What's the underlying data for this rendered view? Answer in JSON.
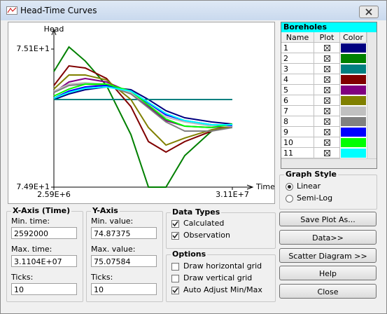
{
  "window": {
    "title": "Head-Time Curves"
  },
  "chart_data": {
    "type": "line",
    "y_label": "Head",
    "x_label": "Time",
    "xlim": [
      2592000,
      31104000
    ],
    "ylim": [
      74.9,
      75.1
    ],
    "xticks": [
      {
        "value": 2592000,
        "label": "2.59E+6"
      },
      {
        "value": 31104000,
        "label": "3.11E+7"
      }
    ],
    "yticks": [
      {
        "value": 75.1,
        "label": "7.51E+1"
      },
      {
        "value": 74.9,
        "label": "7.49E+1"
      }
    ],
    "x": [
      2592000,
      5000000,
      7600000,
      11000000,
      14900000,
      17700000,
      20500000,
      23500000,
      27800000,
      31104000
    ],
    "series": [
      {
        "name": "1",
        "color": "#000080",
        "values": [
          75.0269,
          75.035,
          75.0411,
          75.0452,
          75.0411,
          75.0269,
          75.0107,
          75.0005,
          74.9944,
          74.9914
        ]
      },
      {
        "name": "2",
        "color": "#008000",
        "values": [
          75.0675,
          75.103,
          75.0827,
          75.0472,
          74.9761,
          74.9,
          74.9,
          74.9457,
          74.9812,
          74.9914
        ]
      },
      {
        "name": "3",
        "color": "#008080",
        "values": [
          75.0269,
          75.0269,
          75.0269,
          75.0269,
          75.0269,
          75.0269,
          75.0269,
          75.0269,
          75.0269,
          75.0269
        ]
      },
      {
        "name": "4",
        "color": "#800000",
        "values": [
          75.0472,
          75.0756,
          75.0726,
          75.0574,
          75.0167,
          74.966,
          74.9508,
          74.966,
          74.9812,
          74.9883
        ]
      },
      {
        "name": "5",
        "color": "#800080",
        "values": [
          75.0371,
          75.0523,
          75.0574,
          75.0523,
          75.0371,
          75.0167,
          74.9964,
          74.9883,
          74.9863,
          74.9883
        ]
      },
      {
        "name": "6",
        "color": "#808000",
        "values": [
          75.0421,
          75.0624,
          75.0624,
          75.0553,
          75.0269,
          74.9863,
          74.9609,
          74.9711,
          74.9832,
          74.9883
        ]
      },
      {
        "name": "7",
        "color": "#c0c0c0",
        "values": [
          75.0391,
          75.0492,
          75.0513,
          75.0492,
          75.0371,
          75.0188,
          75.0015,
          74.9944,
          74.9883,
          74.9883
        ]
      },
      {
        "name": "8",
        "color": "#808080",
        "values": [
          75.0371,
          75.0472,
          75.0492,
          75.0472,
          75.035,
          75.0147,
          74.9944,
          74.9812,
          74.9812,
          74.9863
        ]
      },
      {
        "name": "9",
        "color": "#0000ff",
        "values": [
          75.0289,
          75.0391,
          75.0452,
          75.0472,
          75.0391,
          75.0218,
          75.0046,
          74.9964,
          74.9904,
          74.9893
        ]
      },
      {
        "name": "10",
        "color": "#00ff00",
        "values": [
          75.032,
          75.0421,
          75.0492,
          75.0492,
          75.0391,
          75.0188,
          74.9985,
          74.9883,
          74.9863,
          74.9914
        ]
      },
      {
        "name": "11",
        "color": "#00ffff",
        "values": [
          75.0289,
          75.0371,
          75.0431,
          75.0452,
          75.0391,
          75.0228,
          75.0066,
          74.9964,
          74.9904,
          74.9904
        ]
      }
    ]
  },
  "boreholes": {
    "title": "Boreholes",
    "columns": [
      "Name",
      "Plot",
      "Color"
    ],
    "plot": [
      true,
      true,
      true,
      true,
      true,
      true,
      true,
      true,
      true,
      true,
      true
    ]
  },
  "graph_style": {
    "title": "Graph Style",
    "options": [
      "Linear",
      "Semi-Log"
    ],
    "selected": 0
  },
  "x_axis": {
    "title": "X-Axis (Time)",
    "fields": [
      {
        "label": "Min. time:",
        "value": "2592000"
      },
      {
        "label": "Max. time:",
        "value": "3.1104E+07"
      },
      {
        "label": "Ticks:",
        "value": "10"
      }
    ]
  },
  "y_axis": {
    "title": "Y-Axis",
    "fields": [
      {
        "label": "Min. value:",
        "value": "74.87375"
      },
      {
        "label": "Max. value:",
        "value": "75.07584"
      },
      {
        "label": "Ticks:",
        "value": "10"
      }
    ]
  },
  "data_types": {
    "title": "Data Types",
    "items": [
      {
        "label": "Calculated",
        "checked": true
      },
      {
        "label": "Observation",
        "checked": true
      }
    ]
  },
  "options": {
    "title": "Options",
    "items": [
      {
        "label": "Draw horizontal grid",
        "checked": false
      },
      {
        "label": "Draw vertical grid",
        "checked": false
      },
      {
        "label": "Auto Adjust Min/Max",
        "checked": true
      }
    ]
  },
  "buttons": [
    "Save Plot As...",
    "Data>>",
    "Scatter Diagram >>",
    "Help",
    "Close"
  ]
}
